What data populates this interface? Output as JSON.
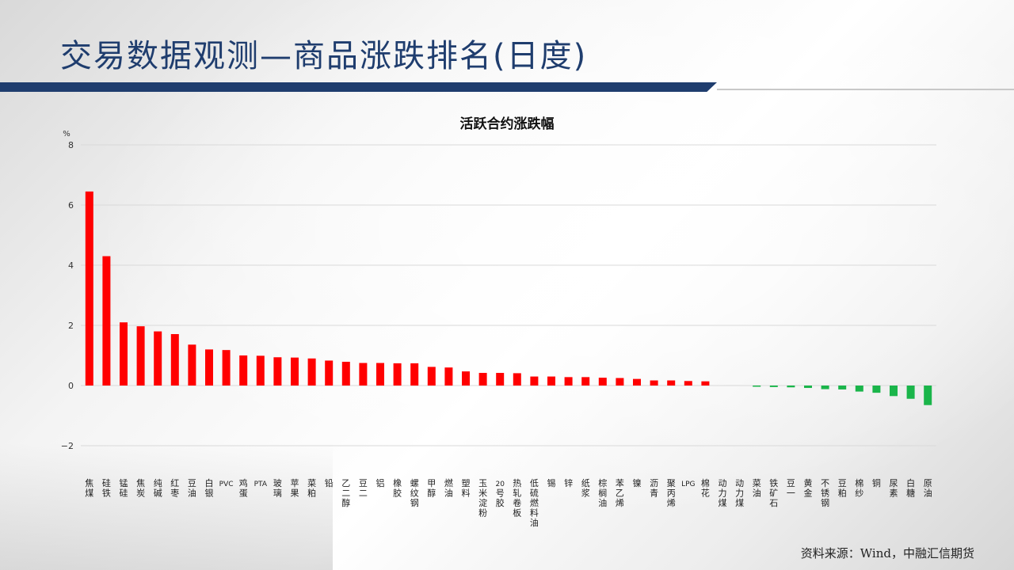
{
  "slide": {
    "title": "交易数据观测—商品涨跌排名(日度)",
    "source": "资料来源：Wind，中融汇信期货"
  },
  "colors": {
    "up": "#ff0000",
    "down": "#1ab54a",
    "title": "#1f3d6e",
    "grid": "#d9d9d9"
  },
  "chart_data": {
    "type": "bar",
    "title": "活跃合约涨跌幅",
    "ylabel": "%",
    "ylim": [
      -2,
      8
    ],
    "yticks": [
      -2,
      0,
      2,
      4,
      6,
      8
    ],
    "grid": true,
    "categories": [
      "焦煤",
      "硅铁",
      "锰硅",
      "焦炭",
      "纯碱",
      "红枣",
      "豆油",
      "白银",
      "PVC",
      "鸡蛋",
      "PTA",
      "玻璃",
      "苹果",
      "菜粕",
      "铅",
      "乙二醇",
      "豆二",
      "铝",
      "橡胶",
      "螺纹钢",
      "甲醇",
      "燃油",
      "塑料",
      "玉米淀粉",
      "20号胶",
      "热轧卷板",
      "低硫燃料油",
      "锡",
      "锌",
      "纸浆",
      "棕榈油",
      "苯乙烯",
      "镍",
      "沥青",
      "聚丙烯",
      "LPG",
      "棉花",
      "动力煤",
      "动力煤",
      "菜油",
      "铁矿石",
      "豆一",
      "黄金",
      "不锈钢",
      "豆粕",
      "棉纱",
      "铜",
      "尿素",
      "白糖",
      "原油"
    ],
    "values": [
      6.45,
      4.3,
      2.1,
      1.97,
      1.8,
      1.71,
      1.36,
      1.2,
      1.18,
      1.0,
      0.99,
      0.94,
      0.93,
      0.9,
      0.83,
      0.79,
      0.75,
      0.75,
      0.74,
      0.74,
      0.62,
      0.6,
      0.47,
      0.42,
      0.42,
      0.41,
      0.3,
      0.3,
      0.28,
      0.28,
      0.26,
      0.25,
      0.22,
      0.17,
      0.17,
      0.15,
      0.14,
      0.0,
      0.0,
      -0.03,
      -0.05,
      -0.06,
      -0.08,
      -0.12,
      -0.13,
      -0.2,
      -0.24,
      -0.35,
      -0.44,
      -0.65
    ]
  }
}
